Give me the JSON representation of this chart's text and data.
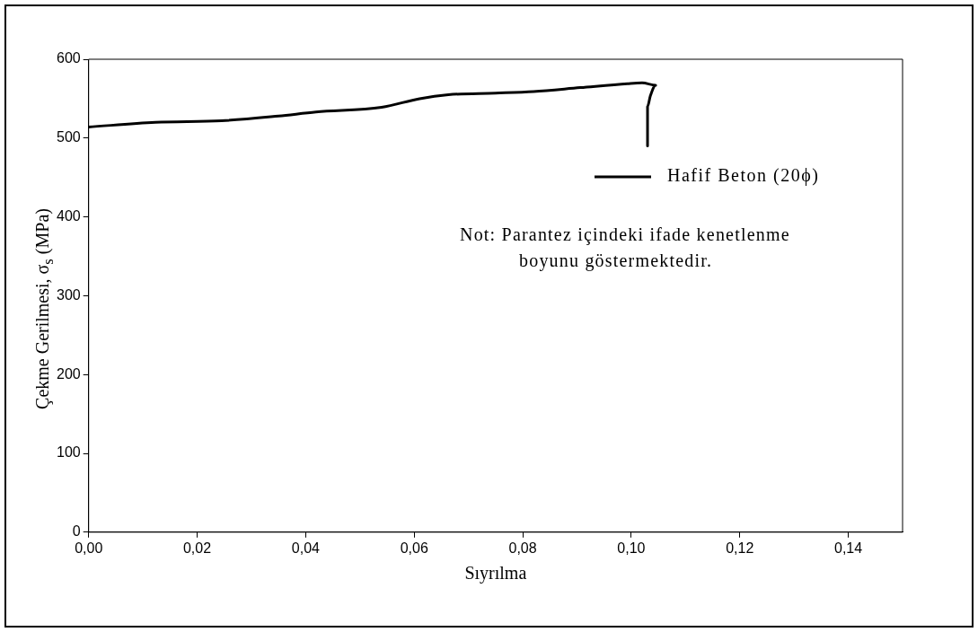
{
  "chart_data": {
    "type": "line",
    "xlabel": "Sıyrılma",
    "ylabel": "Çekme Gerilmesi, σ$_{s}$ (MPa)",
    "x": [
      0,
      0.0123,
      0.0245,
      0.035,
      0.0419,
      0.054,
      0.061,
      0.0663,
      0.075,
      0.082,
      0.0906,
      0.0993,
      0.102,
      0.1045,
      0.1035,
      0.103,
      0.103
    ],
    "series": [
      {
        "name": "Hafif Beton (20ϕ)",
        "color": "#000000",
        "values": [
          514,
          520,
          522,
          528,
          533,
          539,
          550,
          555,
          557,
          559,
          564,
          569,
          570,
          567,
          553,
          540,
          490
        ]
      }
    ],
    "xlim": [
      0,
      0.15
    ],
    "xticks": [
      {
        "value": 0,
        "label": "0,00"
      },
      {
        "value": 0.02,
        "label": "0,02"
      },
      {
        "value": 0.04,
        "label": "0,04"
      },
      {
        "value": 0.06,
        "label": "0,06"
      },
      {
        "value": 0.08,
        "label": "0,08"
      },
      {
        "value": 0.1,
        "label": "0,10"
      },
      {
        "value": 0.12,
        "label": "0,12"
      },
      {
        "value": 0.14,
        "label": "0,14"
      }
    ],
    "ylim": [
      0,
      600
    ],
    "yticks": [
      0,
      100,
      200,
      300,
      400,
      500,
      600
    ],
    "grid": false,
    "legend": "top right",
    "marker": "none",
    "line_style": "solid",
    "annotations": [
      {
        "text": "Not: Parantez içindeki ifade kenetlenme\nboyunu göstermektedir."
      }
    ]
  }
}
